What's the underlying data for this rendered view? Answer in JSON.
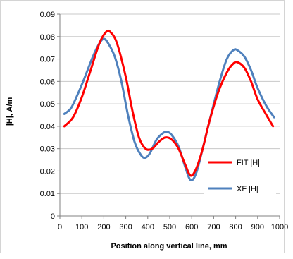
{
  "chart_data": {
    "type": "line",
    "title": "",
    "xlabel": "Position along vertical line, mm",
    "ylabel": "|H|, A/m",
    "xlim": [
      0,
      1000
    ],
    "ylim": [
      0,
      0.09
    ],
    "x_ticks": [
      0,
      100,
      200,
      300,
      400,
      500,
      600,
      700,
      800,
      900,
      1000
    ],
    "y_ticks": [
      0,
      0.01,
      0.02,
      0.03,
      0.04,
      0.05,
      0.06,
      0.07,
      0.08,
      0.09
    ],
    "y_tick_labels": [
      "0",
      "0.01",
      "0.02",
      "0.03",
      "0.04",
      "0.05",
      "0.06",
      "0.07",
      "0.08",
      "0.09"
    ],
    "grid": "horizontal",
    "legend_position": "right",
    "series": [
      {
        "name": "FIT |H|",
        "color": "#ff0000",
        "points": [
          [
            20,
            0.04
          ],
          [
            60,
            0.044
          ],
          [
            100,
            0.053
          ],
          [
            140,
            0.065
          ],
          [
            180,
            0.077
          ],
          [
            210,
            0.082
          ],
          [
            230,
            0.082
          ],
          [
            260,
            0.077
          ],
          [
            300,
            0.062
          ],
          [
            330,
            0.047
          ],
          [
            360,
            0.035
          ],
          [
            390,
            0.03
          ],
          [
            420,
            0.03
          ],
          [
            450,
            0.033
          ],
          [
            480,
            0.035
          ],
          [
            510,
            0.034
          ],
          [
            540,
            0.03
          ],
          [
            570,
            0.023
          ],
          [
            595,
            0.018
          ],
          [
            620,
            0.021
          ],
          [
            650,
            0.03
          ],
          [
            680,
            0.042
          ],
          [
            720,
            0.055
          ],
          [
            760,
            0.064
          ],
          [
            790,
            0.068
          ],
          [
            810,
            0.0685
          ],
          [
            840,
            0.066
          ],
          [
            870,
            0.06
          ],
          [
            900,
            0.052
          ],
          [
            940,
            0.045
          ],
          [
            970,
            0.04
          ]
        ]
      },
      {
        "name": "XF |H|",
        "color": "#4f81bd",
        "points": [
          [
            20,
            0.0455
          ],
          [
            50,
            0.048
          ],
          [
            80,
            0.054
          ],
          [
            110,
            0.061
          ],
          [
            150,
            0.071
          ],
          [
            180,
            0.077
          ],
          [
            200,
            0.079
          ],
          [
            220,
            0.077
          ],
          [
            250,
            0.071
          ],
          [
            280,
            0.06
          ],
          [
            310,
            0.045
          ],
          [
            340,
            0.033
          ],
          [
            370,
            0.027
          ],
          [
            390,
            0.026
          ],
          [
            410,
            0.028
          ],
          [
            440,
            0.034
          ],
          [
            470,
            0.037
          ],
          [
            490,
            0.0375
          ],
          [
            510,
            0.036
          ],
          [
            540,
            0.031
          ],
          [
            570,
            0.022
          ],
          [
            595,
            0.016
          ],
          [
            620,
            0.019
          ],
          [
            650,
            0.03
          ],
          [
            690,
            0.046
          ],
          [
            730,
            0.061
          ],
          [
            760,
            0.07
          ],
          [
            790,
            0.074
          ],
          [
            810,
            0.0738
          ],
          [
            840,
            0.071
          ],
          [
            870,
            0.065
          ],
          [
            900,
            0.057
          ],
          [
            940,
            0.049
          ],
          [
            975,
            0.044
          ]
        ]
      }
    ]
  }
}
